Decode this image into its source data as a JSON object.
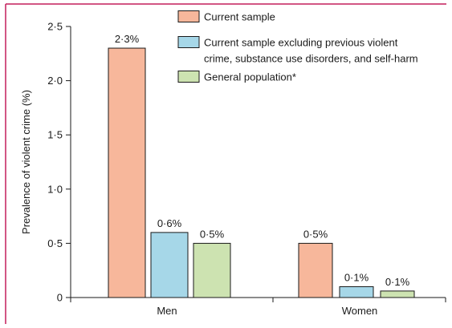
{
  "chart_data": {
    "type": "bar",
    "ylabel": "Prevalence of violent crime (%)",
    "ylim": [
      0,
      2.5
    ],
    "yticks": [
      {
        "value": 0,
        "label": "0"
      },
      {
        "value": 0.5,
        "label": "0·5"
      },
      {
        "value": 1.0,
        "label": "1·0"
      },
      {
        "value": 1.5,
        "label": "1·5"
      },
      {
        "value": 2.0,
        "label": "2·0"
      },
      {
        "value": 2.5,
        "label": "2·5"
      }
    ],
    "categories": [
      "Men",
      "Women"
    ],
    "series": [
      {
        "name": "Current sample",
        "color": "#f7b79b",
        "values": [
          2.3,
          0.5
        ],
        "labels": [
          "2·3%",
          "0·5%"
        ]
      },
      {
        "name": "Current sample excluding previous violent crime, substance use disorders, and self-harm",
        "name_lines": [
          "Current sample excluding previous violent",
          "crime, substance use disorders, and self-harm"
        ],
        "color": "#a6d7e8",
        "values": [
          0.6,
          0.1
        ],
        "labels": [
          "0·6%",
          "0·1%"
        ]
      },
      {
        "name": "General population*",
        "color": "#cde3b1",
        "values": [
          0.5,
          0.06
        ],
        "labels": [
          "0·5%",
          "0·1%"
        ]
      }
    ],
    "frame_color": "#c41e5c",
    "grid": false,
    "legend_position": "top-right"
  }
}
